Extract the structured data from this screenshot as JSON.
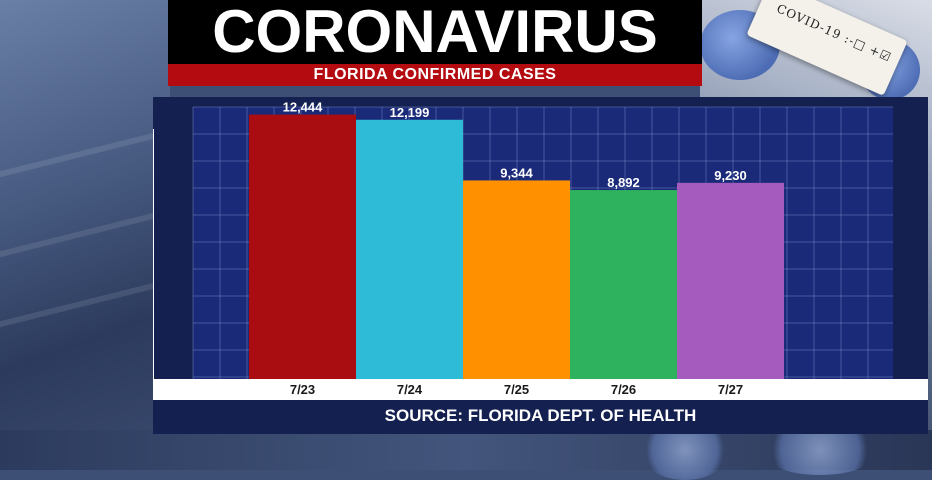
{
  "header": {
    "title": "CORONAVIRUS",
    "subtitle": "FLORIDA CONFIRMED CASES"
  },
  "background": {
    "vial_label": "COVID-19 :-□ +☑"
  },
  "footer": {
    "source": "SOURCE: FLORIDA DEPT. OF HEALTH"
  },
  "chart_data": {
    "type": "bar",
    "categories": [
      "7/23",
      "7/24",
      "7/25",
      "7/26",
      "7/27"
    ],
    "values": [
      12444,
      12199,
      9344,
      8892,
      9230
    ],
    "data_labels": [
      "12,444",
      "12,199",
      "9,344",
      "8,892",
      "9,230"
    ],
    "colors": [
      "#a90d12",
      "#2ebbd8",
      "#ff9100",
      "#2fb25d",
      "#a45bbd"
    ],
    "ylim": [
      0,
      12800
    ],
    "grid": true,
    "legend": "none"
  }
}
